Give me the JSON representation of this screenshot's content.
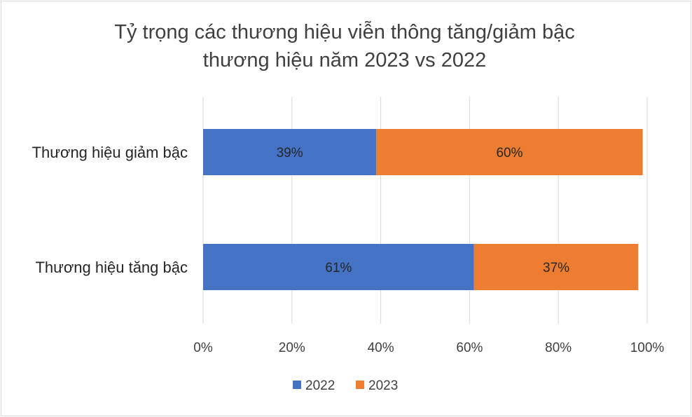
{
  "chart_data": {
    "type": "bar",
    "orientation": "horizontal",
    "stacked": true,
    "title_lines": [
      "Tỷ trọng các thương hiệu viễn thông tăng/giảm bậc",
      "thương hiệu năm 2023 vs 2022"
    ],
    "categories": [
      "Thương hiệu giảm bậc",
      "Thương hiệu tăng bậc"
    ],
    "series": [
      {
        "name": "2022",
        "color": "#4472c4",
        "values": [
          0.39,
          0.61
        ],
        "labels": [
          "39%",
          "61%"
        ]
      },
      {
        "name": "2023",
        "color": "#ed7d31",
        "values": [
          0.6,
          0.37
        ],
        "labels": [
          "60%",
          "37%"
        ]
      }
    ],
    "xlim": [
      0,
      1
    ],
    "xticks": [
      "0%",
      "20%",
      "40%",
      "60%",
      "80%",
      "100%"
    ],
    "grid": true,
    "legend": "bottom"
  }
}
